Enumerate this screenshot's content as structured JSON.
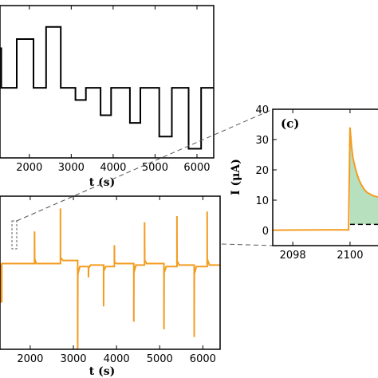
{
  "chart_data": [
    {
      "type": "line",
      "panel": "a",
      "xlabel": "t (s)",
      "xlim": [
        1300,
        6400
      ],
      "ylim": [
        0,
        10
      ],
      "x_ticks": [
        "2000",
        "3000",
        "4000",
        "5000",
        "6000"
      ],
      "x_tick_values": [
        2000,
        3000,
        4000,
        5000,
        6000
      ],
      "series": [
        {
          "color": "#000000",
          "x": [
            1300,
            1330,
            1330,
            1700,
            1700,
            2100,
            2100,
            2400,
            2400,
            2750,
            2750,
            3100,
            3100,
            3350,
            3350,
            3700,
            3700,
            3950,
            3950,
            4400,
            4400,
            4650,
            4650,
            5100,
            5100,
            5400,
            5400,
            5800,
            5800,
            6100,
            6100,
            6400
          ],
          "y": [
            7.2,
            7.2,
            4.6,
            4.6,
            7.8,
            7.8,
            4.6,
            4.6,
            8.6,
            8.6,
            4.6,
            4.6,
            3.8,
            3.8,
            4.6,
            4.6,
            2.8,
            2.8,
            4.6,
            4.6,
            2.3,
            2.3,
            4.6,
            4.6,
            1.4,
            1.4,
            4.6,
            4.6,
            0.6,
            0.6,
            4.6,
            4.6
          ]
        }
      ]
    },
    {
      "type": "line",
      "panel": "b",
      "xlabel": "t (s)",
      "xlim": [
        1300,
        6400
      ],
      "ylim": [
        -55,
        45
      ],
      "x_ticks": [
        "2000",
        "3000",
        "4000",
        "5000",
        "6000"
      ],
      "x_tick_values": [
        2000,
        3000,
        4000,
        5000,
        6000
      ],
      "series": [
        {
          "color": "#f39c21",
          "x": [
            1300,
            1320,
            1320,
            1340,
            1340,
            1700,
            2100,
            2100,
            2103,
            2140,
            2400,
            2700,
            2700,
            2703,
            2760,
            3100,
            3100,
            3103,
            3150,
            3350,
            3350,
            3353,
            3400,
            3700,
            3700,
            3703,
            3750,
            3950,
            3950,
            3953,
            4000,
            4400,
            4400,
            4403,
            4450,
            4650,
            4650,
            4653,
            4700,
            5100,
            5100,
            5103,
            5150,
            5400,
            5400,
            5403,
            5450,
            5800,
            5800,
            5803,
            5850,
            6100,
            6100,
            6103,
            6150,
            6400
          ],
          "y": [
            0,
            0,
            -24,
            -24,
            1,
            1,
            1,
            22,
            4,
            1,
            1,
            1,
            37,
            5,
            3,
            3,
            -55,
            -6,
            -1,
            -1,
            -8,
            -2,
            0,
            0,
            -27,
            -4,
            -1,
            -1,
            13,
            2,
            1,
            1,
            -37,
            -5,
            0,
            0,
            28,
            3,
            1,
            1,
            -42,
            -5,
            -1,
            -1,
            32,
            3,
            0,
            0,
            -47,
            -6,
            -1,
            -1,
            35,
            4,
            0,
            0
          ]
        }
      ]
    },
    {
      "type": "area",
      "panel": "c",
      "title": "(c)",
      "ylabel": "I (μA)",
      "xlim": [
        2097.3,
        2101.2
      ],
      "ylim": [
        -5,
        40
      ],
      "x_ticks": [
        "2098",
        "2100"
      ],
      "x_tick_values": [
        2098,
        2100
      ],
      "y_ticks": [
        "0",
        "10",
        "20",
        "30",
        "40"
      ],
      "y_tick_values": [
        0,
        10,
        20,
        30,
        40
      ],
      "baseline": 2,
      "series": [
        {
          "color": "#f39c21",
          "fill": "#b7e0bf",
          "x": [
            2097.3,
            2099.0,
            2099.95,
            2100.0,
            2100.05,
            2100.1,
            2100.2,
            2100.3,
            2100.4,
            2100.5,
            2100.6,
            2100.8,
            2101.0,
            2101.2
          ],
          "y": [
            0.1,
            0.2,
            0.2,
            34,
            28,
            24,
            20,
            17,
            15,
            13.5,
            12.5,
            11.5,
            11,
            10.6
          ]
        }
      ]
    }
  ]
}
